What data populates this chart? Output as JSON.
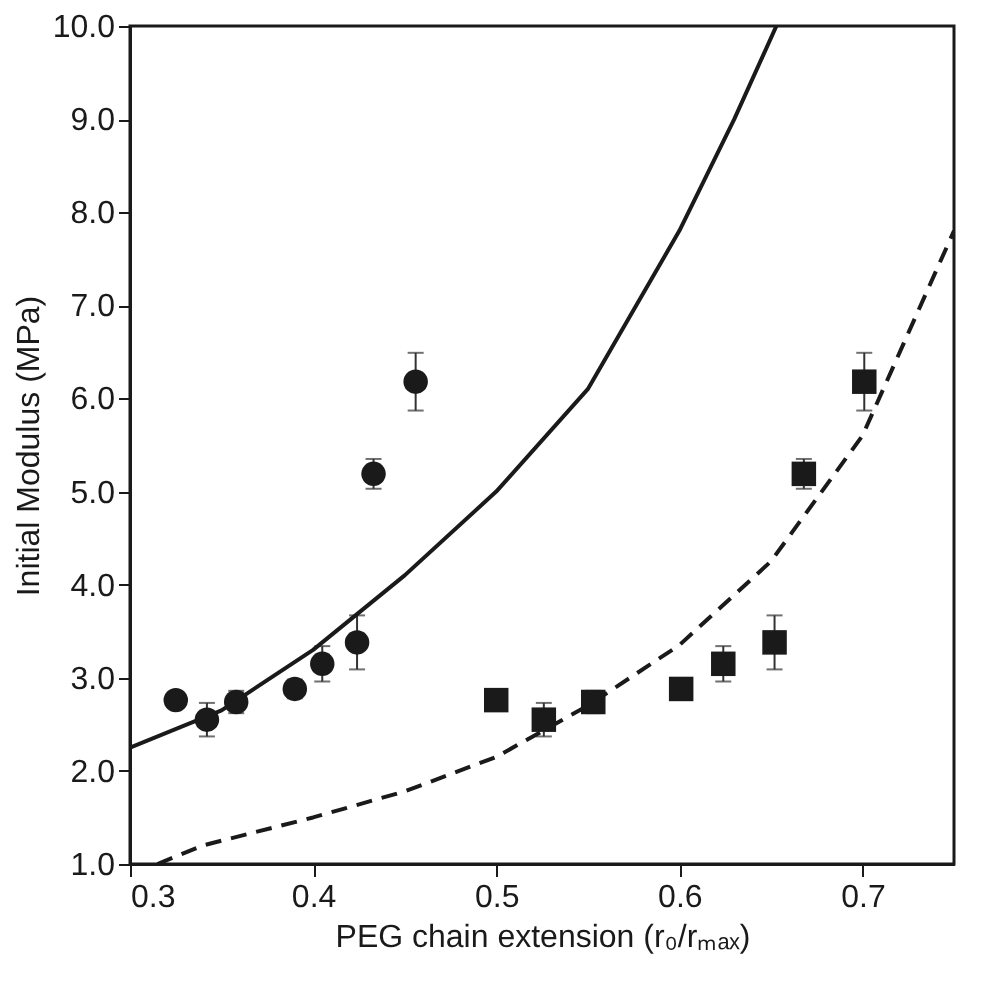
{
  "chart_data": {
    "type": "scatter",
    "xlabel": "PEG chain extension (r₀/rₘₐₓ)",
    "ylabel": "Initial Modulus (MPa)",
    "xlim": [
      0.3,
      0.75
    ],
    "xticks": [
      0.3,
      0.4,
      0.5,
      0.6,
      0.7
    ],
    "ylim": [
      1.0,
      10.0
    ],
    "yticks": [
      {
        "value": 1,
        "label": "1.0"
      },
      {
        "value": 2,
        "label": "2.0"
      },
      {
        "value": 3,
        "label": "3.0"
      },
      {
        "value": 4,
        "label": "4.0"
      },
      {
        "value": 5,
        "label": "5.0"
      },
      {
        "value": 6,
        "label": "6.0"
      },
      {
        "value": 7,
        "label": "7.0"
      },
      {
        "value": 8,
        "label": "8.0"
      },
      {
        "value": 9,
        "label": "9.0"
      },
      {
        "value": 10,
        "label": "10.0"
      }
    ],
    "series": [
      {
        "marker": "circle",
        "color": "#1a1a1a",
        "x": [
          0.325,
          0.342,
          0.358,
          0.39,
          0.405,
          0.424,
          0.433,
          0.456
        ],
        "values": [
          2.76,
          2.55,
          2.74,
          2.88,
          3.15,
          3.38,
          5.19,
          6.18
        ],
        "errors": [
          null,
          0.18,
          0.12,
          0.1,
          0.19,
          0.29,
          0.16,
          0.31
        ]
      },
      {
        "marker": "square",
        "color": "#1a1a1a",
        "x": [
          0.5,
          0.526,
          0.553,
          0.601,
          0.624,
          0.652,
          0.668,
          0.701
        ],
        "values": [
          2.76,
          2.55,
          2.74,
          2.88,
          3.15,
          3.38,
          5.19,
          6.18
        ],
        "errors": [
          null,
          0.18,
          0.12,
          0.1,
          0.19,
          0.29,
          0.16,
          0.31
        ]
      },
      {
        "type": "line",
        "line_style": "solid",
        "color": "#1a1a1a",
        "x": [
          0.3,
          0.35,
          0.4,
          0.45,
          0.5,
          0.55,
          0.6,
          0.63,
          0.653
        ],
        "values": [
          2.25,
          2.65,
          3.3,
          4.1,
          5.0,
          6.1,
          7.8,
          9.0,
          10.0
        ]
      },
      {
        "type": "line",
        "line_style": "dashed",
        "color": "#1a1a1a",
        "x": [
          0.315,
          0.34,
          0.4,
          0.45,
          0.5,
          0.55,
          0.6,
          0.65,
          0.7,
          0.75
        ],
        "values": [
          1.0,
          1.2,
          1.5,
          1.78,
          2.15,
          2.7,
          3.35,
          4.25,
          5.6,
          7.8
        ]
      }
    ]
  }
}
